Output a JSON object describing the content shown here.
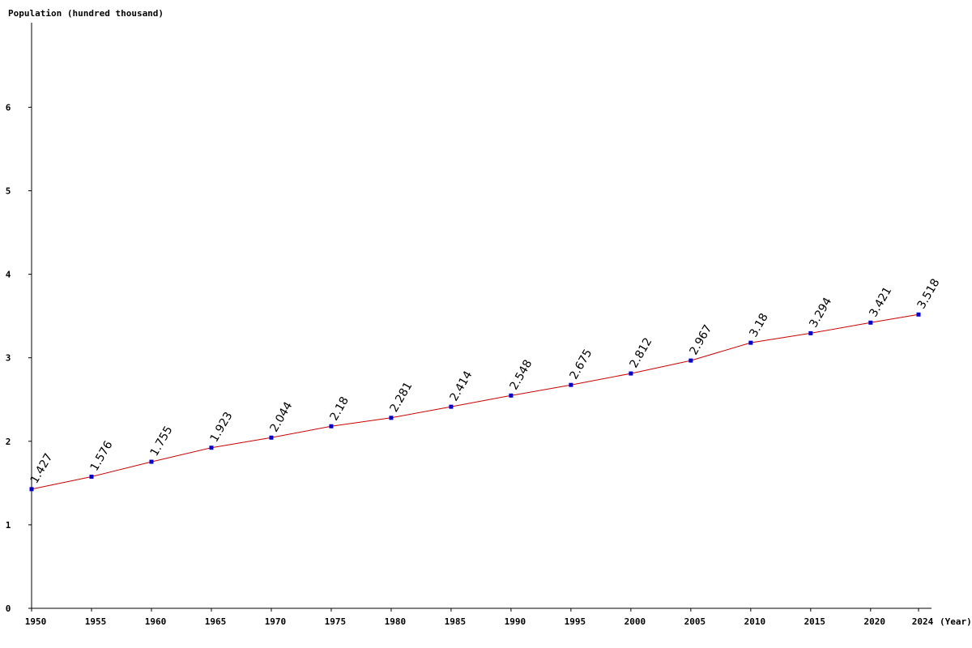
{
  "chart_data": {
    "type": "line",
    "ylabel": "Population (hundred thousand)",
    "xlabel": "(Year)",
    "x": [
      1950,
      1955,
      1960,
      1965,
      1970,
      1975,
      1980,
      1985,
      1990,
      1995,
      2000,
      2005,
      2010,
      2015,
      2020,
      2024
    ],
    "values": [
      1.427,
      1.576,
      1.755,
      1.923,
      2.044,
      2.18,
      2.281,
      2.414,
      2.548,
      2.675,
      2.812,
      2.967,
      3.18,
      3.294,
      3.421,
      3.518
    ],
    "data_labels": [
      "1.427",
      "1.576",
      "1.755",
      "1.923",
      "2.044",
      "2.18",
      "2.281",
      "2.414",
      "2.548",
      "2.675",
      "2.812",
      "2.967",
      "3.18",
      "3.294",
      "3.421",
      "3.518"
    ],
    "y_ticks": [
      0,
      1,
      2,
      3,
      4,
      5,
      6
    ],
    "ylim": [
      0,
      7
    ],
    "xlim": [
      1950,
      2024
    ],
    "grid": false,
    "colors": {
      "line": "#cc0000",
      "marker": "#0000cc",
      "axis": "#000000"
    }
  }
}
